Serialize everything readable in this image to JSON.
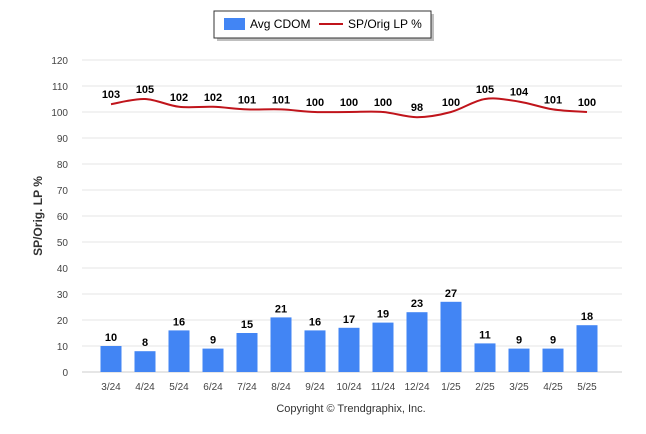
{
  "chart_data": {
    "type": "bar",
    "categories": [
      "3/24",
      "4/24",
      "5/24",
      "6/24",
      "7/24",
      "8/24",
      "9/24",
      "10/24",
      "11/24",
      "12/24",
      "1/25",
      "2/25",
      "3/25",
      "4/25",
      "5/25"
    ],
    "series": [
      {
        "name": "Avg CDOM",
        "kind": "bar",
        "color": "#4285f4",
        "values": [
          10,
          8,
          16,
          9,
          15,
          21,
          16,
          17,
          19,
          23,
          27,
          11,
          9,
          9,
          18
        ]
      },
      {
        "name": "SP/Orig LP %",
        "kind": "line",
        "color": "#c0141b",
        "values": [
          103,
          105,
          102,
          102,
          101,
          101,
          100,
          100,
          100,
          98,
          100,
          105,
          104,
          101,
          100
        ]
      }
    ],
    "title": "",
    "xlabel": "",
    "ylabel": "SP/Orig. LP %",
    "ylim": [
      0,
      120
    ],
    "yticks": [
      0,
      10,
      20,
      30,
      40,
      50,
      60,
      70,
      80,
      90,
      100,
      110,
      120
    ],
    "grid": true,
    "legend_position": "top-center"
  },
  "footer": {
    "copyright": "Copyright © Trendgraphix, Inc."
  }
}
